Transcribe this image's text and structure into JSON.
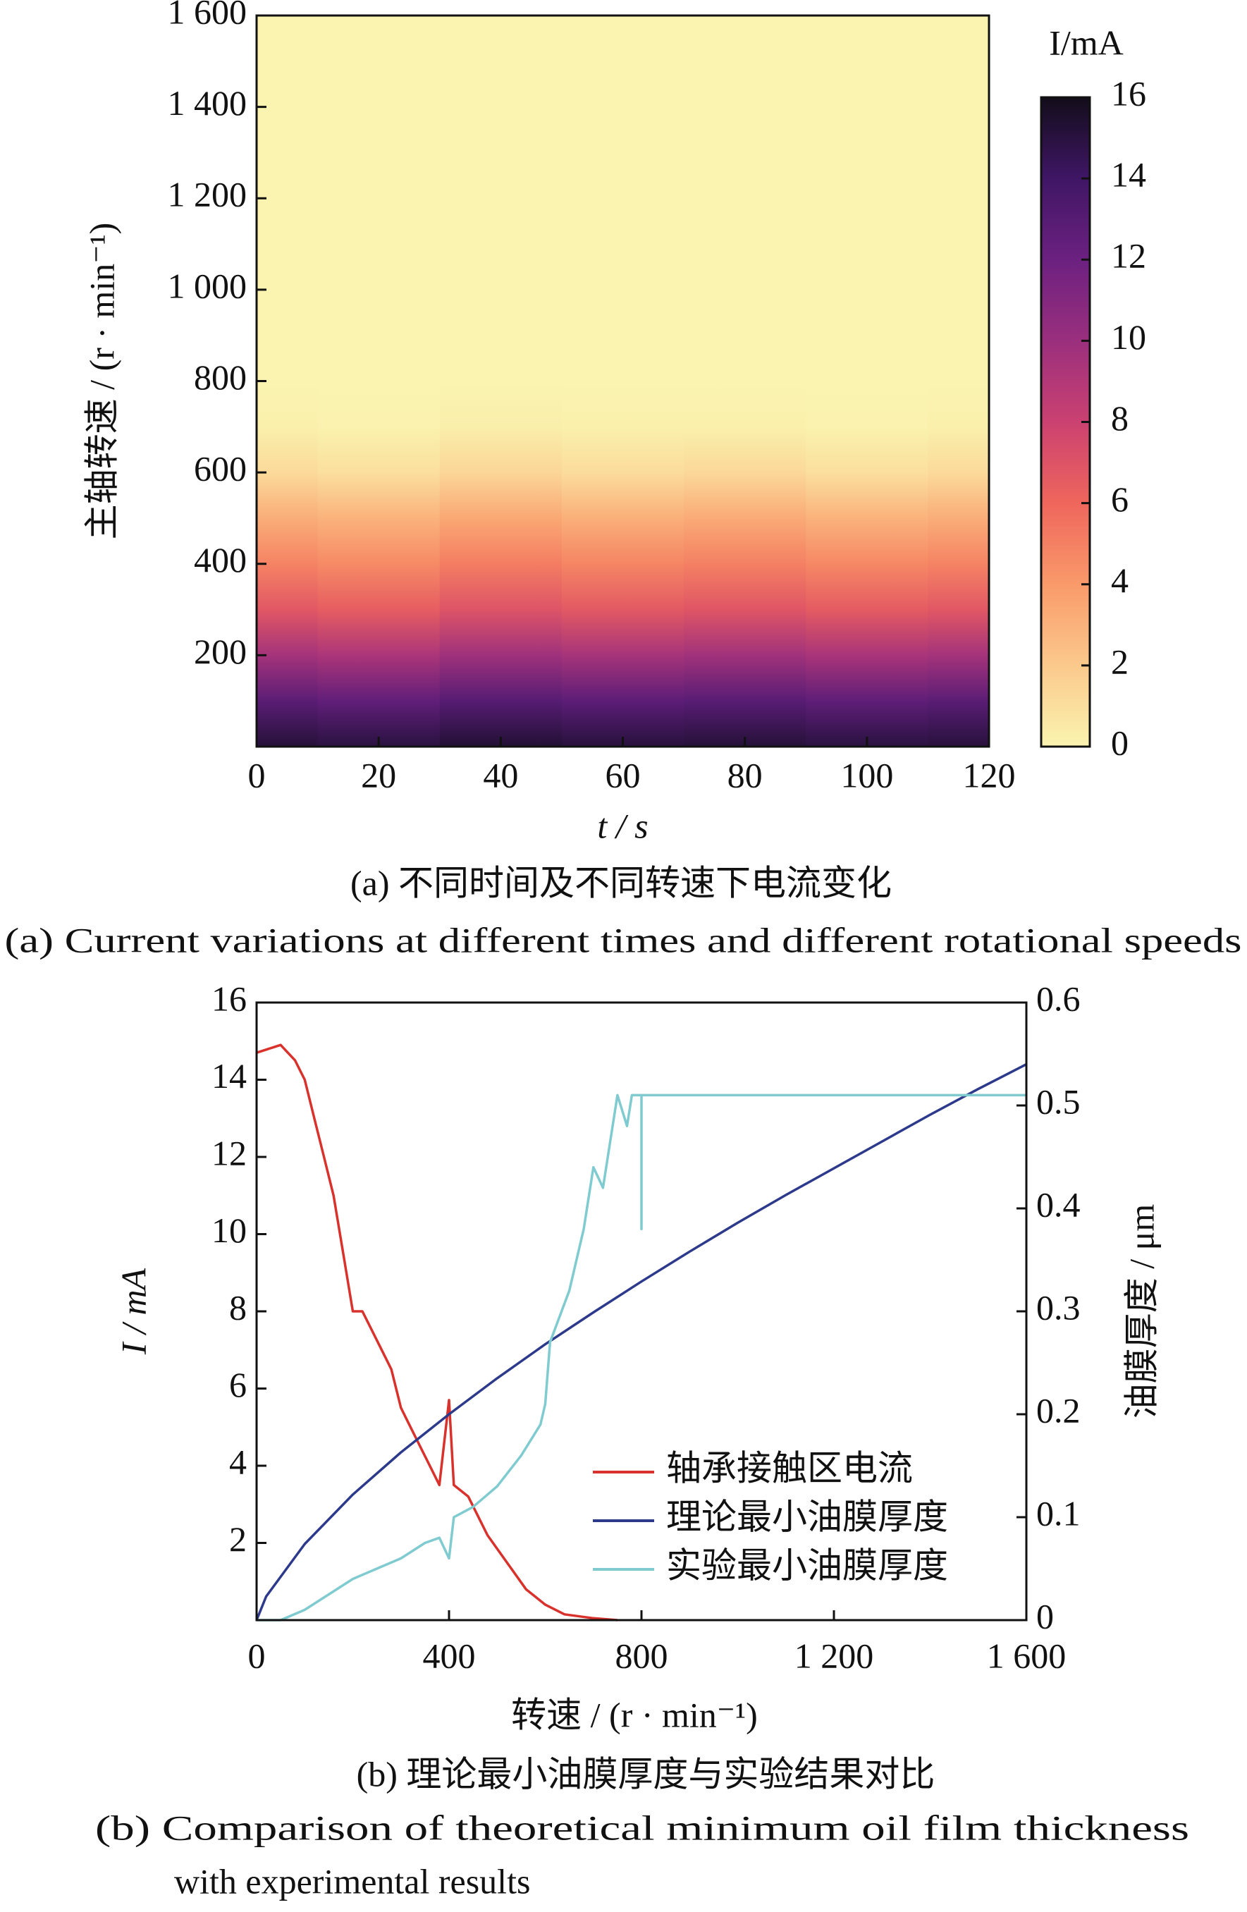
{
  "chart_data": [
    {
      "type": "heatmap",
      "x_label": "t / s",
      "y_label": "主轴转速 / (r · min⁻¹)",
      "caption": "(a)  不同时间及不同转速下电流变化",
      "caption_en": "(a)  Current variations at different times and different rotational speeds",
      "x": [
        0,
        20,
        40,
        60,
        80,
        100,
        120
      ],
      "y": [
        0,
        100,
        200,
        300,
        400,
        500,
        600,
        700,
        800,
        1600
      ],
      "z": [
        [
          15.2,
          15.0,
          15.3,
          15.1,
          15.2,
          15.0,
          15.1
        ],
        [
          12.8,
          12.5,
          13.0,
          12.7,
          12.9,
          12.6,
          12.8
        ],
        [
          9.6,
          9.3,
          9.8,
          9.5,
          9.7,
          9.4,
          9.6
        ],
        [
          6.8,
          6.5,
          7.0,
          6.7,
          6.9,
          6.6,
          6.8
        ],
        [
          4.9,
          4.6,
          5.1,
          4.8,
          5.0,
          4.7,
          4.9
        ],
        [
          3.2,
          3.0,
          3.4,
          3.1,
          3.3,
          3.0,
          3.2
        ],
        [
          1.2,
          1.0,
          1.4,
          1.1,
          1.3,
          1.0,
          1.2
        ],
        [
          0.2,
          0.1,
          0.3,
          0.2,
          0.2,
          0.1,
          0.2
        ],
        [
          0,
          0,
          0,
          0,
          0,
          0,
          0
        ],
        [
          0,
          0,
          0,
          0,
          0,
          0,
          0
        ]
      ],
      "xlim": [
        0,
        120
      ],
      "xticks": [
        0,
        20,
        40,
        60,
        80,
        100,
        120
      ],
      "ylim": [
        0,
        1600
      ],
      "yticks": [
        200,
        400,
        600,
        800,
        {
          "value": 1000,
          "label": "1 000"
        },
        {
          "value": 1200,
          "label": "1 200"
        },
        {
          "value": 1400,
          "label": "1 400"
        },
        {
          "value": 1600,
          "label": "1 600"
        }
      ],
      "colorbar_label": "I/mA",
      "clim": [
        0,
        16
      ],
      "cticks": [
        0,
        2,
        4,
        6,
        8,
        10,
        12,
        14,
        16
      ],
      "colormap": [
        "#faf4b0",
        "#fbc98c",
        "#f99a6a",
        "#ef665c",
        "#cb4171",
        "#9a2f7d",
        "#6c2180",
        "#3f1665",
        "#130d1a"
      ]
    },
    {
      "type": "line",
      "x_label": "转速 / (r · min⁻¹)",
      "y_label": "I / mA",
      "y2_label": "油膜厚度 / μm",
      "caption": "(b)  理论最小油膜厚度与实验结果对比",
      "caption_en": [
        "(b)  Comparison of theoretical minimum oil film thickness",
        "with experimental results"
      ],
      "xlim": [
        0,
        1600
      ],
      "xticks": [
        0,
        400,
        800,
        {
          "value": 1200,
          "label": "1 200"
        },
        {
          "value": 1600,
          "label": "1 600"
        }
      ],
      "ylim": [
        0,
        16
      ],
      "yticks": [
        2,
        4,
        6,
        8,
        10,
        12,
        14,
        16
      ],
      "y2lim": [
        0,
        0.6
      ],
      "y2ticks": [
        0,
        0.1,
        0.2,
        0.3,
        0.4,
        0.5,
        0.6
      ],
      "legend": "lower right",
      "series": [
        {
          "name": "轴承接触区电流",
          "color": "#d9312b",
          "x": [
            0,
            50,
            80,
            100,
            120,
            140,
            160,
            180,
            200,
            220,
            240,
            260,
            280,
            300,
            320,
            340,
            360,
            380,
            400,
            410,
            440,
            480,
            520,
            560,
            600,
            640,
            700,
            750
          ],
          "values": [
            14.7,
            14.9,
            14.5,
            14,
            13,
            12,
            11,
            9.5,
            8,
            8,
            7.5,
            7,
            6.5,
            5.5,
            5,
            4.5,
            4,
            3.5,
            5.7,
            3.5,
            3.2,
            2.2,
            1.5,
            0.8,
            0.4,
            0.15,
            0.05,
            0
          ]
        },
        {
          "name": "理论最小油膜厚度",
          "color": "#2d3a8c",
          "axis": "y2",
          "x": [
            0,
            20,
            100,
            200,
            300,
            400,
            500,
            600,
            700,
            800,
            900,
            1000,
            1100,
            1200,
            1300,
            1400,
            1500,
            1600
          ],
          "values": [
            0,
            0.023,
            0.074,
            0.122,
            0.163,
            0.2,
            0.235,
            0.268,
            0.299,
            0.329,
            0.358,
            0.386,
            0.413,
            0.439,
            0.465,
            0.491,
            0.516,
            0.54
          ]
        },
        {
          "name": "实验最小油膜厚度",
          "color": "#7fcbcf",
          "axis": "y2",
          "x": [
            0,
            50,
            100,
            150,
            200,
            250,
            300,
            350,
            380,
            400,
            410,
            450,
            500,
            550,
            590,
            600,
            610,
            650,
            680,
            700,
            720,
            750,
            770,
            780,
            800,
            800,
            800,
            1600
          ],
          "values": [
            0,
            0,
            0.01,
            0.025,
            0.04,
            0.05,
            0.06,
            0.075,
            0.08,
            0.06,
            0.1,
            0.11,
            0.13,
            0.16,
            0.19,
            0.21,
            0.27,
            0.32,
            0.38,
            0.44,
            0.42,
            0.51,
            0.48,
            0.51,
            0.51,
            0.38,
            0.51,
            0.51
          ]
        }
      ]
    }
  ]
}
